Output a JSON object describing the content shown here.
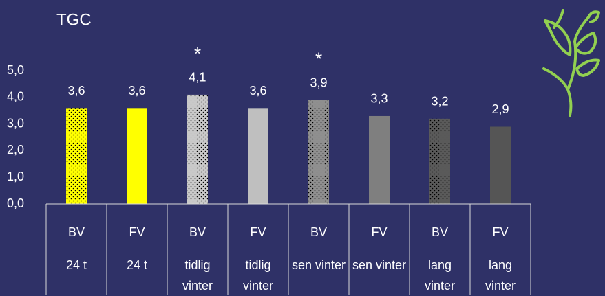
{
  "chart_data": {
    "type": "bar",
    "title": "TGC",
    "categories": [
      [
        "BV",
        "24 t"
      ],
      [
        "FV",
        "24 t"
      ],
      [
        "BV",
        "tidlig vinter"
      ],
      [
        "FV",
        "tidlig vinter"
      ],
      [
        "BV",
        "sen vinter"
      ],
      [
        "FV",
        "sen vinter"
      ],
      [
        "BV",
        "lang vinter"
      ],
      [
        "FV",
        "lang vinter"
      ]
    ],
    "values": [
      3.6,
      3.6,
      4.1,
      3.6,
      3.9,
      3.3,
      3.2,
      2.9
    ],
    "value_labels": [
      "3,6",
      "3,6",
      "4,1",
      "3,6",
      "3,9",
      "3,3",
      "3,2",
      "2,9"
    ],
    "annotations": [
      null,
      null,
      "*",
      null,
      "*",
      null,
      null,
      null
    ],
    "colors": [
      "#ffff00",
      "#ffff00",
      "#c9c9c9",
      "#bfbfbf",
      "#8f8f8f",
      "#7f7f7f",
      "#5a5a5a",
      "#555555"
    ],
    "dotted": [
      true,
      false,
      true,
      false,
      true,
      false,
      true,
      false
    ],
    "ylim": [
      0,
      5
    ],
    "yticks": [
      {
        "value": 0,
        "label": "0,0"
      },
      {
        "value": 1,
        "label": "1,0"
      },
      {
        "value": 2,
        "label": "2,0"
      },
      {
        "value": 3,
        "label": "3,0"
      },
      {
        "value": 4,
        "label": "4,0"
      },
      {
        "value": 5,
        "label": "5,0"
      }
    ],
    "grid": false
  }
}
